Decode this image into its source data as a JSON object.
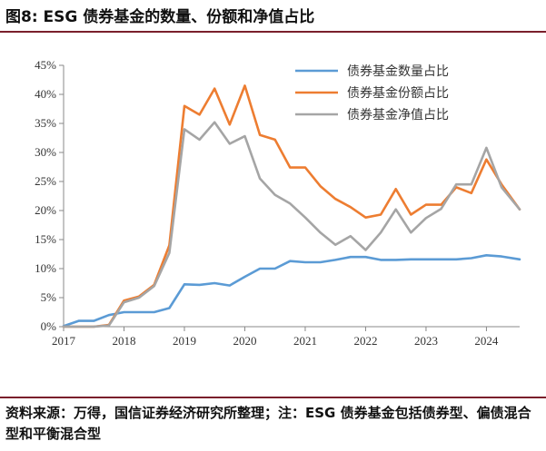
{
  "title": "图8: ESG 债券基金的数量、份额和净值占比",
  "footnote": "资料来源：万得，国信证券经济研究所整理；注：ESG 债券基金包括债券型、偏债混合型和平衡混合型",
  "chart_data": {
    "type": "line",
    "title": "图8: ESG 债券基金的数量、份额和净值占比",
    "xlabel": "",
    "ylabel": "",
    "xlim": [
      2017,
      2024.55
    ],
    "ylim": [
      0,
      45
    ],
    "x_ticks": [
      "2017",
      "2018",
      "2019",
      "2020",
      "2021",
      "2022",
      "2023",
      "2024"
    ],
    "y_ticks": [
      "0%",
      "5%",
      "10%",
      "15%",
      "20%",
      "25%",
      "30%",
      "35%",
      "40%",
      "45%"
    ],
    "x": [
      2017.0,
      2017.25,
      2017.5,
      2017.75,
      2018.0,
      2018.25,
      2018.5,
      2018.75,
      2019.0,
      2019.25,
      2019.5,
      2019.75,
      2020.0,
      2020.25,
      2020.5,
      2020.75,
      2021.0,
      2021.25,
      2021.5,
      2021.75,
      2022.0,
      2022.25,
      2022.5,
      2022.75,
      2023.0,
      2023.25,
      2023.5,
      2023.75,
      2024.0,
      2024.25,
      2024.55
    ],
    "series": [
      {
        "name": "债券基金数量占比",
        "color": "#5b9bd5",
        "values": [
          0.1,
          1.0,
          1.0,
          2.0,
          2.5,
          2.5,
          2.5,
          3.2,
          7.3,
          7.2,
          7.5,
          7.1,
          8.6,
          10.0,
          10.0,
          11.3,
          11.1,
          11.1,
          11.5,
          12.0,
          12.0,
          11.5,
          11.5,
          11.6,
          11.6,
          11.6,
          11.6,
          11.8,
          12.3,
          12.1,
          11.6
        ]
      },
      {
        "name": "债券基金份额占比",
        "color": "#ed7d31",
        "values": [
          0.0,
          0.0,
          0.0,
          0.3,
          4.5,
          5.2,
          7.2,
          14.0,
          38.0,
          36.5,
          41.0,
          34.8,
          41.5,
          33.0,
          32.2,
          27.4,
          27.4,
          24.2,
          22.0,
          20.6,
          18.8,
          19.3,
          23.7,
          19.3,
          21.0,
          21.0,
          24.0,
          23.0,
          28.8,
          24.5,
          20.2
        ]
      },
      {
        "name": "债券基金净值占比",
        "color": "#a5a5a5",
        "values": [
          0.0,
          0.0,
          0.0,
          0.2,
          4.2,
          5.0,
          7.0,
          12.7,
          34.0,
          32.2,
          35.2,
          31.5,
          32.8,
          25.5,
          22.7,
          21.2,
          18.8,
          16.2,
          14.1,
          15.6,
          13.2,
          16.2,
          20.2,
          16.2,
          18.7,
          20.3,
          24.5,
          24.5,
          30.8,
          24.0,
          20.2
        ]
      }
    ],
    "legend_position": "top-right",
    "grid": false
  }
}
